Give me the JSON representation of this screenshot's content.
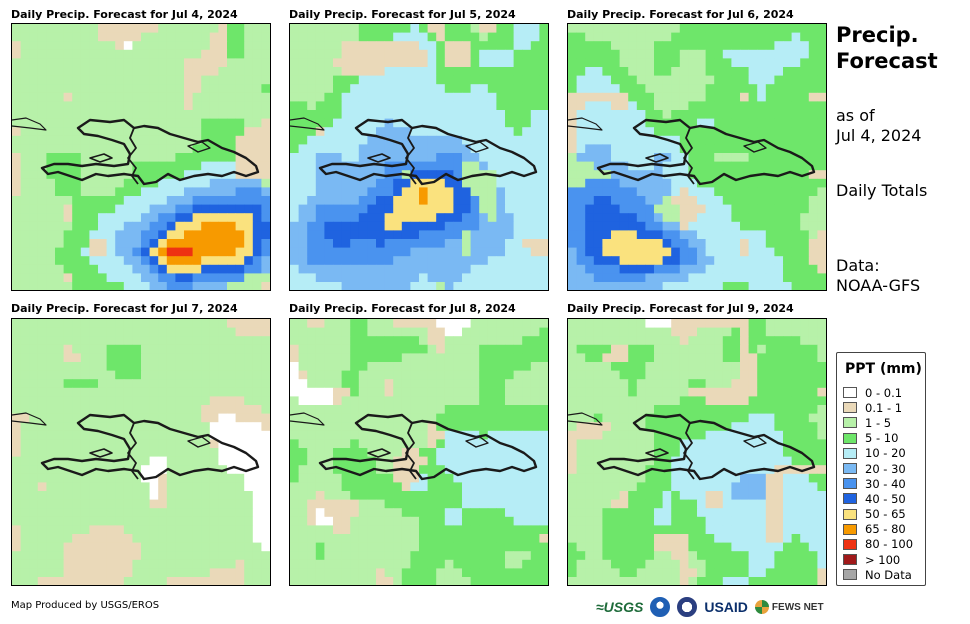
{
  "panels": [
    {
      "title": "Daily Precip. Forecast for Jul 4, 2024",
      "profile": "jul4"
    },
    {
      "title": "Daily Precip. Forecast for Jul 5, 2024",
      "profile": "jul5"
    },
    {
      "title": "Daily Precip. Forecast for Jul 6, 2024",
      "profile": "jul6"
    },
    {
      "title": "Daily Precip. Forecast for Jul 7, 2024",
      "profile": "jul7"
    },
    {
      "title": "Daily Precip. Forecast for Jul 8, 2024",
      "profile": "jul8"
    },
    {
      "title": "Daily Precip. Forecast for Jul 9, 2024",
      "profile": "jul9"
    }
  ],
  "side": {
    "title_line1": "Precip.",
    "title_line2": "Forecast",
    "asof_line1": "as of",
    "asof_line2": "Jul 4, 2024",
    "totals": "Daily Totals",
    "data_line1": "Data:",
    "data_line2": "NOAA-GFS"
  },
  "legend": {
    "title": "PPT (mm)",
    "items": [
      {
        "label": "0 - 0.1",
        "color": "#ffffff"
      },
      {
        "label": "0.1 - 1",
        "color": "#ead9b9"
      },
      {
        "label": "1 - 5",
        "color": "#b7f1a9"
      },
      {
        "label": "5 - 10",
        "color": "#6ee66a"
      },
      {
        "label": "10 - 20",
        "color": "#b6edf6"
      },
      {
        "label": "20 - 30",
        "color": "#7ab9f3"
      },
      {
        "label": "30 - 40",
        "color": "#4a93ef"
      },
      {
        "label": "40 - 50",
        "color": "#1f63e0"
      },
      {
        "label": "50 - 65",
        "color": "#fae27e"
      },
      {
        "label": "65 - 80",
        "color": "#f79a00"
      },
      {
        "label": "80 - 100",
        "color": "#ee3212"
      },
      {
        "label": "> 100",
        "color": "#a0191a"
      },
      {
        "label": "No Data",
        "color": "#a6a6a6"
      }
    ]
  },
  "footer": {
    "credit": "Map Produced by USGS/EROS",
    "logos": {
      "usgs": "≈USGS",
      "usaid": "USAID",
      "fews": "FEWS NET"
    }
  }
}
